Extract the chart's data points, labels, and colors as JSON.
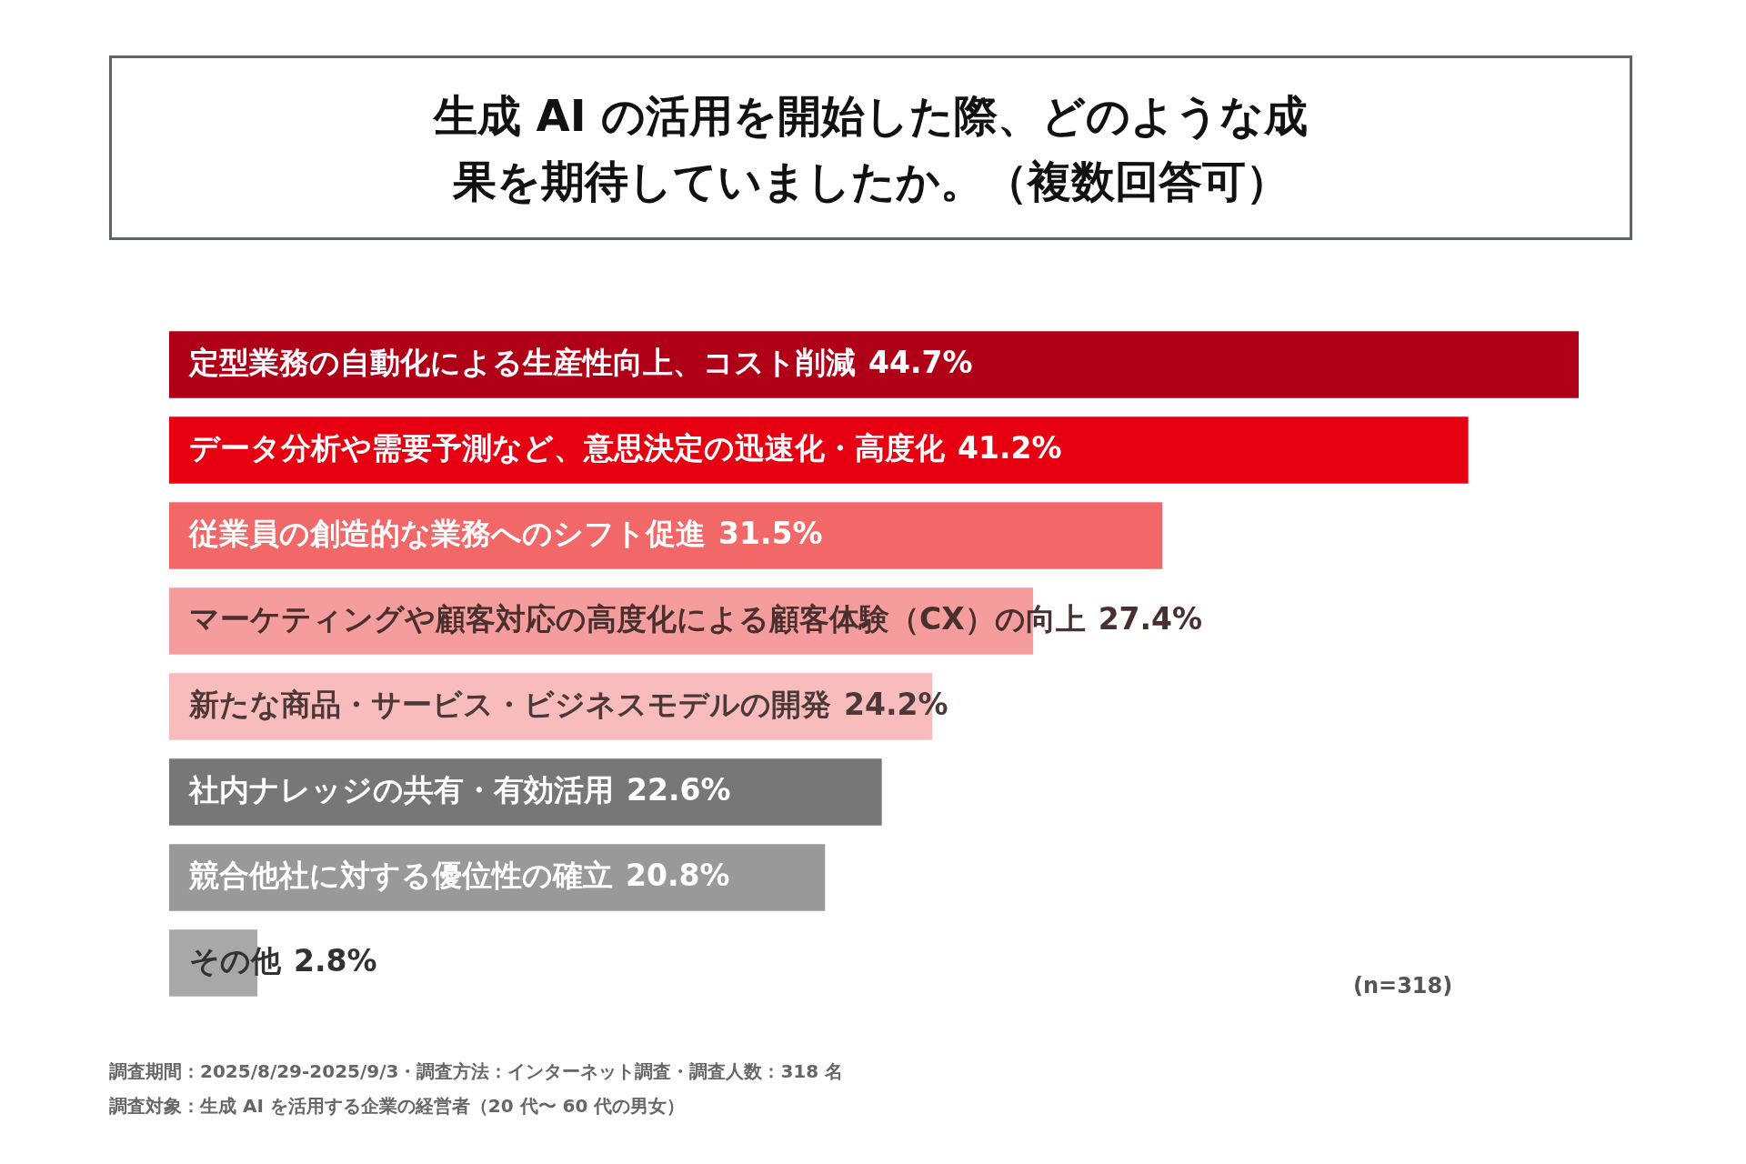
{
  "chart_data": {
    "type": "bar",
    "orientation": "horizontal",
    "title": "生成 AI の活用を開始した際、どのような成果を期待していましたか。（複数回答可）",
    "categories": [
      "定型業務の自動化による生産性向上、コスト削減",
      "データ分析や需要予測など、意思決定の迅速化・高度化",
      "従業員の創造的な業務へのシフト促進",
      "マーケティングや顧客対応の高度化による顧客体験（CX）の向上",
      "新たな商品・サービス・ビジネスモデルの開発",
      "社内ナレッジの共有・有効活用",
      "競合他社に対する優位性の確立",
      "その他"
    ],
    "values": [
      44.7,
      41.2,
      31.5,
      27.4,
      24.2,
      22.6,
      20.8,
      2.8
    ],
    "value_labels": [
      "44.7%",
      "41.2%",
      "31.5%",
      "27.4%",
      "24.2%",
      "22.6%",
      "20.8%",
      "2.8%"
    ],
    "colors": [
      "#b00018",
      "#e60012",
      "#f26868",
      "#f59c9c",
      "#f9bcbc",
      "#777777",
      "#999999",
      "#a8a8a8"
    ],
    "legend": false,
    "annotations": [
      "(n=318)",
      "調査期間：2025/8/29-2025/9/3・調査方法：インターネット調査・調査人数：318 名",
      "調査対象：生成 AI を活用する企業の経営者（20 代〜 60 代の男女）"
    ]
  }
}
